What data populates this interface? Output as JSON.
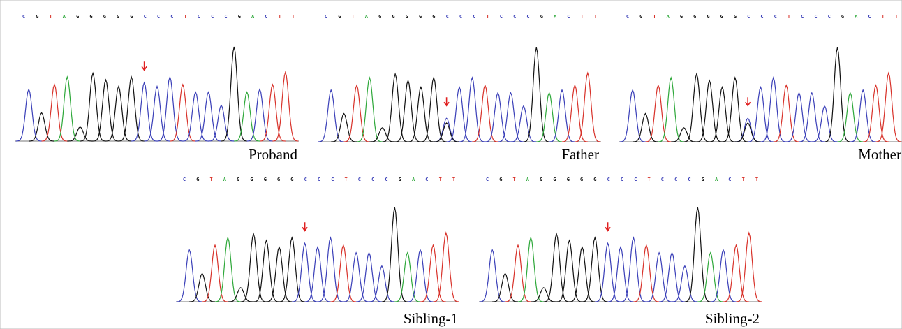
{
  "panels": [
    {
      "label": "Proband",
      "sequence": [
        "C",
        "G",
        "T",
        "A",
        "G",
        "G",
        "G",
        "G",
        "G",
        "C",
        "C",
        "C",
        "T",
        "C",
        "C",
        "C",
        "G",
        "A",
        "C",
        "T",
        "T"
      ]
    },
    {
      "label": "Father",
      "sequence": [
        "C",
        "G",
        "T",
        "A",
        "G",
        "G",
        "G",
        "G",
        "G",
        "C",
        "C",
        "C",
        "T",
        "C",
        "C",
        "C",
        "G",
        "A",
        "C",
        "T",
        "T"
      ]
    },
    {
      "label": "Mother",
      "sequence": [
        "C",
        "G",
        "T",
        "A",
        "G",
        "G",
        "G",
        "G",
        "G",
        "C",
        "C",
        "C",
        "T",
        "C",
        "C",
        "C",
        "G",
        "A",
        "C",
        "T",
        "T"
      ]
    },
    {
      "label": "Sibling-1",
      "sequence": [
        "C",
        "G",
        "T",
        "A",
        "G",
        "G",
        "G",
        "G",
        "G",
        "C",
        "C",
        "C",
        "T",
        "C",
        "C",
        "C",
        "G",
        "A",
        "C",
        "T",
        "T"
      ]
    },
    {
      "label": "Sibling-2",
      "sequence": [
        "C",
        "G",
        "T",
        "A",
        "G",
        "G",
        "G",
        "G",
        "G",
        "C",
        "C",
        "C",
        "T",
        "C",
        "C",
        "C",
        "G",
        "A",
        "C",
        "T",
        "T"
      ]
    }
  ]
}
